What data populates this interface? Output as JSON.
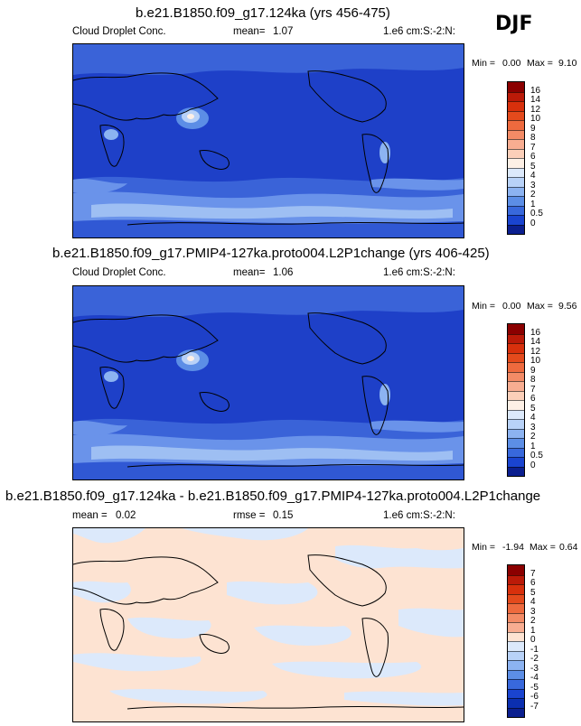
{
  "season": "DJF",
  "panels": [
    {
      "title": "b.e21.B1850.f09_g17.124ka (yrs 456-475)",
      "left_label": "Cloud Droplet Conc.",
      "mean_label": "mean=",
      "mean_value": "1.07",
      "units": "1.e6 cm:S:-2:N:",
      "min_label": "Min =",
      "min_value": "0.00",
      "max_label": "Max =",
      "max_value": "9.10",
      "colorbar": {
        "labels": [
          "16",
          "14",
          "12",
          "10",
          "9",
          "8",
          "7",
          "6",
          "5",
          "4",
          "3",
          "2",
          "1",
          "0.5",
          "0"
        ],
        "colors": [
          "#8b0000",
          "#bb1a08",
          "#d8300c",
          "#e44a1c",
          "#ee6a3e",
          "#f38b66",
          "#f8ad91",
          "#fbcfb9",
          "#fdf0e6",
          "#dce9fb",
          "#b8d2f8",
          "#8cb3f1",
          "#5c8ee6",
          "#3868dc",
          "#1a44d0",
          "#0b1f8f"
        ]
      }
    },
    {
      "title": "b.e21.B1850.f09_g17.PMIP4-127ka.proto004.L2P1change (yrs 406-425)",
      "left_label": "Cloud Droplet Conc.",
      "mean_label": "mean=",
      "mean_value": "1.06",
      "units": "1.e6 cm:S:-2:N:",
      "min_label": "Min =",
      "min_value": "0.00",
      "max_label": "Max =",
      "max_value": "9.56",
      "colorbar": {
        "labels": [
          "16",
          "14",
          "12",
          "10",
          "9",
          "8",
          "7",
          "6",
          "5",
          "4",
          "3",
          "2",
          "1",
          "0.5",
          "0"
        ],
        "colors": [
          "#8b0000",
          "#bb1a08",
          "#d8300c",
          "#e44a1c",
          "#ee6a3e",
          "#f38b66",
          "#f8ad91",
          "#fbcfb9",
          "#fdf0e6",
          "#dce9fb",
          "#b8d2f8",
          "#8cb3f1",
          "#5c8ee6",
          "#3868dc",
          "#1a44d0",
          "#0b1f8f"
        ]
      }
    },
    {
      "title": "b.e21.B1850.f09_g17.124ka - b.e21.B1850.f09_g17.PMIP4-127ka.proto004.L2P1change",
      "left_label": "",
      "mean_label": "mean =",
      "mean_value": "0.02",
      "rmse_label": "rmse =",
      "rmse_value": "0.15",
      "units": "1.e6 cm:S:-2:N:",
      "min_label": "Min =",
      "min_value": "-1.94",
      "max_label": "Max =",
      "max_value": "0.64",
      "colorbar": {
        "labels": [
          "7",
          "6",
          "5",
          "4",
          "3",
          "2",
          "1",
          "0",
          "-1",
          "-2",
          "-3",
          "-4",
          "-5",
          "-6",
          "-7"
        ],
        "colors": [
          "#8b0000",
          "#bb1a08",
          "#d8300c",
          "#e44a1c",
          "#ee6a3e",
          "#f38b66",
          "#f8ad91",
          "#fde3d2",
          "#dce9fb",
          "#b8d2f8",
          "#8cb3f1",
          "#5c8ee6",
          "#3868dc",
          "#1a44d0",
          "#0b2fb0",
          "#0b1f8f"
        ]
      }
    }
  ]
}
